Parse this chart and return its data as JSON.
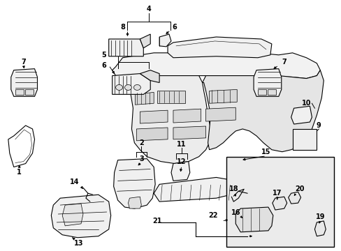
{
  "bg_color": "#ffffff",
  "fig_width": 4.89,
  "fig_height": 3.6,
  "dpi": 100,
  "line_color": "#000000",
  "gray_fill": "#e8e8e8",
  "light_fill": "#f0f0f0",
  "box_fill": "#ebebeb"
}
